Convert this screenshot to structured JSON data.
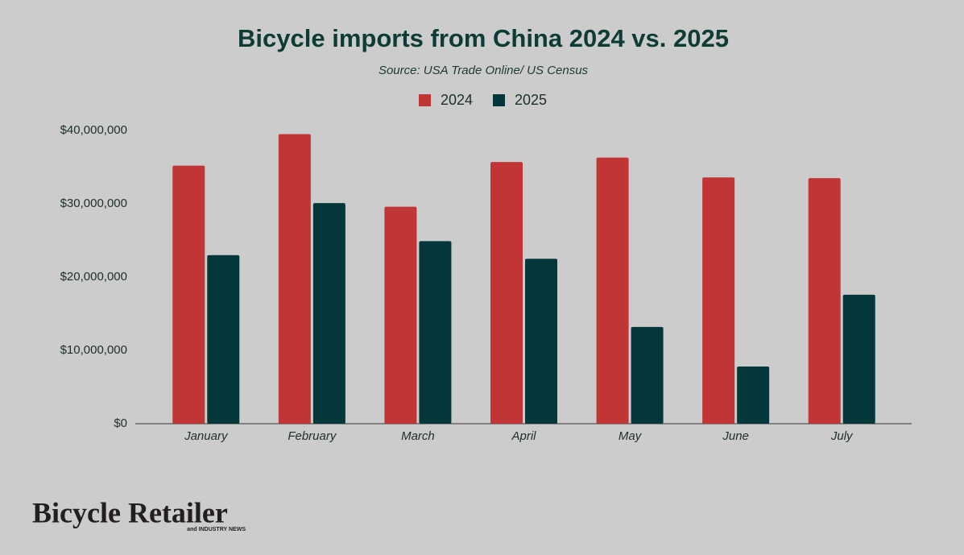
{
  "chart_data": {
    "type": "bar",
    "title": "Bicycle imports from China 2024 vs. 2025",
    "subtitle": "Source: USA Trade Online/ US Census",
    "categories": [
      "January",
      "February",
      "March",
      "April",
      "May",
      "June",
      "July"
    ],
    "series": [
      {
        "name": "2024",
        "color": "#c23535",
        "values": [
          35200000,
          39500000,
          29600000,
          35700000,
          36300000,
          33600000,
          33500000
        ]
      },
      {
        "name": "2025",
        "color": "#03373a",
        "values": [
          23000000,
          30100000,
          24900000,
          22500000,
          13200000,
          7800000,
          17600000
        ]
      }
    ],
    "ylim": [
      0,
      40000000
    ],
    "yticks": [
      {
        "value": 0,
        "label": "$0"
      },
      {
        "value": 10000000,
        "label": "$10,000,000"
      },
      {
        "value": 20000000,
        "label": "$20,000,000"
      },
      {
        "value": 30000000,
        "label": "$30,000,000"
      },
      {
        "value": 40000000,
        "label": "$40,000,000"
      }
    ],
    "grid": false,
    "legend": "top"
  },
  "logo": {
    "name": "Bicycle Retailer",
    "tagline": "and INDUSTRY NEWS"
  }
}
